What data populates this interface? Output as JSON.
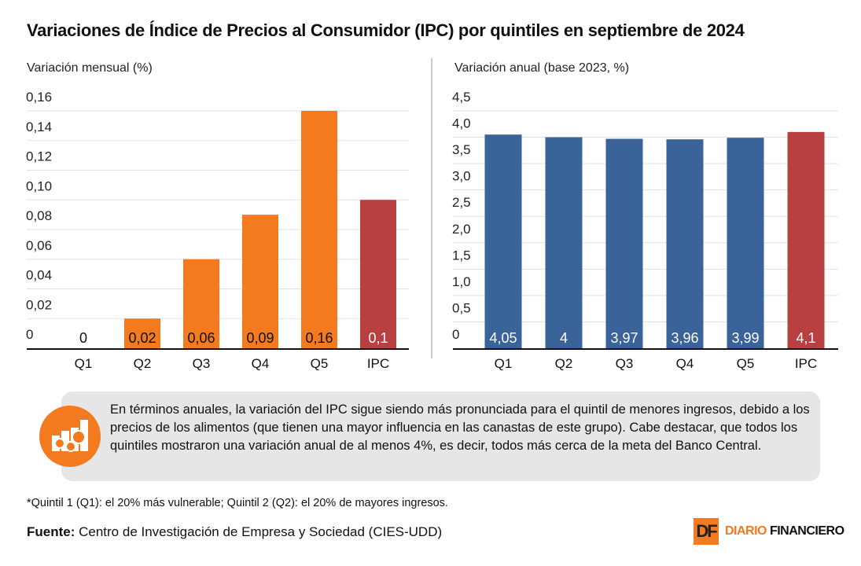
{
  "title": "Variaciones de Índice de Precios al Consumidor (IPC) por quintiles en septiembre de 2024",
  "chart_data": [
    {
      "type": "bar",
      "ylabel": "Variación mensual (%)",
      "categories": [
        "Q1",
        "Q2",
        "Q3",
        "Q4",
        "Q5",
        "IPC"
      ],
      "values": [
        0,
        0.02,
        0.06,
        0.09,
        0.16,
        0.1
      ],
      "data_labels": [
        "0",
        "0,02",
        "0,06",
        "0,09",
        "0,16",
        "0,1"
      ],
      "ylim": [
        0,
        0.16
      ],
      "yticks": [
        0,
        0.02,
        0.04,
        0.06,
        0.08,
        0.1,
        0.12,
        0.14,
        0.16
      ],
      "ytick_labels": [
        "0",
        "0,02",
        "0,04",
        "0,06",
        "0,08",
        "0,10",
        "0,12",
        "0,14",
        "0,16"
      ],
      "colors": [
        "#f47a20",
        "#f47a20",
        "#f47a20",
        "#f47a20",
        "#f47a20",
        "#b94040"
      ],
      "label_colors": [
        "#111",
        "#111",
        "#111",
        "#111",
        "#111",
        "#fff"
      ],
      "grid": true
    },
    {
      "type": "bar",
      "ylabel": "Variación anual (base 2023, %)",
      "categories": [
        "Q1",
        "Q2",
        "Q3",
        "Q4",
        "Q5",
        "IPC"
      ],
      "values": [
        4.05,
        4,
        3.97,
        3.96,
        3.99,
        4.1
      ],
      "data_labels": [
        "4,05",
        "4",
        "3,97",
        "3,96",
        "3,99",
        "4,1"
      ],
      "ylim": [
        0,
        4.5
      ],
      "yticks": [
        0,
        0.5,
        1,
        1.5,
        2,
        2.5,
        3,
        3.5,
        4,
        4.5
      ],
      "ytick_labels": [
        "0",
        "0,5",
        "1,0",
        "1,5",
        "2,0",
        "2,5",
        "3,0",
        "3,5",
        "4,0",
        "4,5"
      ],
      "colors": [
        "#3a6399",
        "#3a6399",
        "#3a6399",
        "#3a6399",
        "#3a6399",
        "#b94040"
      ],
      "label_colors": [
        "#fff",
        "#fff",
        "#fff",
        "#fff",
        "#fff",
        "#fff"
      ],
      "grid": true
    }
  ],
  "note": {
    "icon": "gears-chart-icon",
    "text": "En términos anuales, la variación del IPC sigue siendo más pronunciada para el quintil de menores ingresos, debido a los precios de los alimentos (que tienen una mayor influencia en las canastas de este grupo). Cabe destacar, que todos los quintiles mostraron una variación anual de al menos 4%, es decir, todos más cerca de la meta del Banco Central."
  },
  "footnote": "*Quintil 1 (Q1): el 20% más vulnerable; Quintil 2 (Q2): el 20% de mayores ingresos.",
  "source": {
    "label": "Fuente:",
    "text": " Centro de Investigación de Empresa y Sociedad (CIES-UDD)"
  },
  "logo": {
    "mark": "DF",
    "name": "DIARIO FINANCIERO"
  }
}
